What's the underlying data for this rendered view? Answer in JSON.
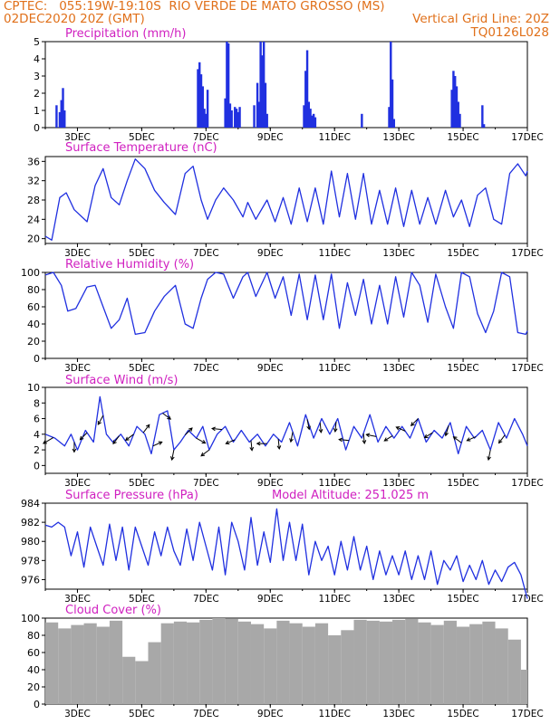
{
  "header": {
    "station_line": "CPTEC:   055:19W-19:10S  RIO VERDE DE MATO GROSSO (MS)",
    "date_line": "02DEC2020 20Z (GMT)",
    "grid_line": "Vertical Grid Line: 20Z",
    "code": "TQ0126L028"
  },
  "colors": {
    "line": "#2030e0",
    "panel_title": "#d020c0",
    "header": "#e0701a",
    "cloud": "#a8a8a8",
    "axis": "#000000"
  },
  "chart_data": [
    {
      "type": "bar",
      "title": "Precipitation (mm/h)",
      "x_tick_labels": [
        "3DEC",
        "5DEC",
        "7DEC",
        "9DEC",
        "11DEC",
        "13DEC",
        "15DEC",
        "17DEC"
      ],
      "xlim_days": [
        2.0,
        17.0
      ],
      "ylim": [
        0,
        5
      ],
      "y_ticks": [
        "0",
        "1",
        "2",
        "3",
        "4",
        "5"
      ],
      "x_days": [
        2.35,
        2.45,
        2.5,
        2.55,
        2.6,
        6.75,
        6.8,
        6.85,
        6.9,
        6.95,
        7.0,
        7.05,
        7.6,
        7.65,
        7.7,
        7.75,
        7.8,
        7.9,
        7.95,
        8.0,
        8.05,
        8.5,
        8.6,
        8.65,
        8.7,
        8.75,
        8.8,
        8.85,
        8.9,
        10.05,
        10.1,
        10.15,
        10.2,
        10.25,
        10.3,
        10.3,
        10.35,
        10.4,
        11.85,
        12.7,
        12.75,
        12.8,
        12.85,
        14.65,
        14.7,
        14.75,
        14.8,
        14.85,
        14.9,
        15.6,
        15.65
      ],
      "values": [
        1.3,
        0.9,
        1.6,
        2.3,
        1.0,
        3.4,
        3.8,
        3.1,
        2.4,
        1.1,
        0.8,
        2.2,
        1.7,
        5.0,
        4.9,
        1.4,
        1.0,
        1.2,
        1.1,
        0.9,
        1.2,
        1.3,
        2.6,
        1.5,
        5.0,
        4.2,
        5.0,
        2.6,
        0.8,
        1.3,
        3.3,
        4.5,
        1.5,
        1.1,
        0.4,
        0.7,
        0.8,
        0.6,
        0.8,
        1.2,
        5.0,
        2.8,
        0.5,
        2.2,
        3.3,
        3.0,
        2.4,
        1.5,
        0.8,
        1.3,
        0.2
      ]
    },
    {
      "type": "line",
      "title": "Surface Temperature (nC)",
      "x_tick_labels": [
        "3DEC",
        "5DEC",
        "7DEC",
        "9DEC",
        "11DEC",
        "13DEC",
        "15DEC",
        "17DEC"
      ],
      "xlim_days": [
        2.0,
        17.0
      ],
      "ylim": [
        19,
        37
      ],
      "y_ticks": [
        "20",
        "24",
        "28",
        "32",
        "36"
      ],
      "x_days": [
        2.0,
        2.2,
        2.45,
        2.65,
        2.9,
        3.3,
        3.55,
        3.8,
        4.05,
        4.3,
        4.55,
        4.8,
        5.1,
        5.4,
        5.7,
        6.05,
        6.35,
        6.6,
        6.85,
        7.05,
        7.3,
        7.55,
        7.85,
        8.15,
        8.3,
        8.55,
        8.9,
        9.15,
        9.4,
        9.65,
        9.9,
        10.15,
        10.4,
        10.65,
        10.9,
        11.15,
        11.4,
        11.65,
        11.9,
        12.15,
        12.4,
        12.65,
        12.9,
        13.15,
        13.4,
        13.65,
        13.9,
        14.15,
        14.45,
        14.7,
        14.95,
        15.2,
        15.45,
        15.7,
        15.95,
        16.2,
        16.45,
        16.7,
        16.95,
        17.0
      ],
      "values": [
        20.5,
        19.7,
        28.5,
        29.5,
        26.0,
        23.5,
        31.0,
        34.5,
        28.5,
        27.0,
        32.0,
        36.5,
        34.5,
        30.0,
        27.5,
        25.0,
        33.5,
        35.0,
        28.0,
        24.0,
        28.0,
        30.5,
        28.0,
        24.5,
        27.5,
        24.0,
        28.0,
        23.5,
        28.5,
        23.0,
        30.5,
        23.5,
        30.5,
        23.0,
        34.0,
        24.5,
        33.5,
        24.0,
        33.5,
        23.0,
        30.0,
        23.0,
        30.5,
        22.5,
        30.0,
        23.0,
        28.5,
        23.0,
        30.0,
        24.5,
        28.0,
        22.5,
        29.0,
        30.5,
        24.0,
        23.0,
        33.5,
        35.5,
        33.0,
        34.0
      ]
    },
    {
      "type": "line",
      "title": "Relative Humidity (%)",
      "x_tick_labels": [
        "3DEC",
        "5DEC",
        "7DEC",
        "9DEC",
        "11DEC",
        "13DEC",
        "15DEC",
        "17DEC"
      ],
      "xlim_days": [
        2.0,
        17.0
      ],
      "ylim": [
        0,
        100
      ],
      "y_ticks": [
        "0",
        "20",
        "40",
        "60",
        "80",
        "100"
      ],
      "x_days": [
        2.0,
        2.25,
        2.5,
        2.7,
        2.95,
        3.3,
        3.55,
        3.8,
        4.05,
        4.3,
        4.55,
        4.8,
        5.1,
        5.4,
        5.7,
        6.05,
        6.35,
        6.6,
        6.85,
        7.05,
        7.3,
        7.55,
        7.85,
        8.15,
        8.3,
        8.55,
        8.9,
        9.15,
        9.4,
        9.65,
        9.9,
        10.15,
        10.4,
        10.65,
        10.9,
        11.15,
        11.4,
        11.65,
        11.9,
        12.15,
        12.4,
        12.65,
        12.9,
        13.15,
        13.4,
        13.65,
        13.9,
        14.15,
        14.45,
        14.7,
        14.95,
        15.2,
        15.45,
        15.7,
        15.95,
        16.2,
        16.45,
        16.7,
        16.95,
        17.0
      ],
      "values": [
        97,
        100,
        85,
        55,
        58,
        83,
        85,
        60,
        35,
        45,
        70,
        28,
        30,
        55,
        72,
        85,
        40,
        35,
        70,
        92,
        100,
        98,
        70,
        95,
        100,
        72,
        100,
        70,
        95,
        50,
        98,
        45,
        97,
        45,
        98,
        35,
        88,
        50,
        92,
        40,
        85,
        40,
        95,
        48,
        100,
        85,
        42,
        98,
        60,
        35,
        100,
        95,
        52,
        30,
        55,
        100,
        95,
        30,
        28,
        32
      ]
    },
    {
      "type": "line",
      "title": "Surface Wind (m/s)",
      "x_tick_labels": [
        "3DEC",
        "5DEC",
        "7DEC",
        "9DEC",
        "11DEC",
        "13DEC",
        "15DEC",
        "17DEC"
      ],
      "xlim_days": [
        2.0,
        17.0
      ],
      "ylim": [
        -1,
        10
      ],
      "y_ticks": [
        "0",
        "2",
        "4",
        "6",
        "8",
        "10"
      ],
      "x_days": [
        2.0,
        2.3,
        2.6,
        2.8,
        3.0,
        3.25,
        3.5,
        3.7,
        3.9,
        4.1,
        4.35,
        4.6,
        4.85,
        5.1,
        5.3,
        5.55,
        5.8,
        6.0,
        6.2,
        6.45,
        6.7,
        6.9,
        7.1,
        7.35,
        7.6,
        7.85,
        8.1,
        8.35,
        8.6,
        8.85,
        9.1,
        9.35,
        9.6,
        9.85,
        10.1,
        10.35,
        10.6,
        10.85,
        11.1,
        11.35,
        11.6,
        11.85,
        12.1,
        12.35,
        12.6,
        12.85,
        13.1,
        13.35,
        13.6,
        13.85,
        14.1,
        14.35,
        14.6,
        14.85,
        15.1,
        15.35,
        15.6,
        15.85,
        16.1,
        16.35,
        16.6,
        16.85,
        17.0
      ],
      "values": [
        4.0,
        3.5,
        2.5,
        4.0,
        2.0,
        4.5,
        3.0,
        8.8,
        4.0,
        3.0,
        4.0,
        2.5,
        5.0,
        4.0,
        1.5,
        6.5,
        7.0,
        2.0,
        3.0,
        4.5,
        3.5,
        5.0,
        2.0,
        4.0,
        5.0,
        3.0,
        4.5,
        3.0,
        4.0,
        2.5,
        4.0,
        3.0,
        5.5,
        2.5,
        6.5,
        3.5,
        6.0,
        4.0,
        6.0,
        2.0,
        5.0,
        3.5,
        6.5,
        3.0,
        5.0,
        3.5,
        5.0,
        3.5,
        6.0,
        3.0,
        4.5,
        3.5,
        5.5,
        1.5,
        5.0,
        3.5,
        4.5,
        2.0,
        5.5,
        3.5,
        6.0,
        4.0,
        2.5
      ],
      "arrows": [
        {
          "day": 2.25,
          "u": -1,
          "v": -0.6
        },
        {
          "day": 2.9,
          "u": 0.0,
          "v": -1
        },
        {
          "day": 3.3,
          "u": -0.7,
          "v": -0.7
        },
        {
          "day": 3.8,
          "u": -0.5,
          "v": -0.9
        },
        {
          "day": 4.3,
          "u": -0.6,
          "v": -0.8
        },
        {
          "day": 4.75,
          "u": -0.8,
          "v": -0.6
        },
        {
          "day": 5.05,
          "u": 0.6,
          "v": 0.8
        },
        {
          "day": 5.35,
          "u": 0.9,
          "v": 0.4
        },
        {
          "day": 5.65,
          "u": 0.8,
          "v": -0.6
        },
        {
          "day": 6.0,
          "u": -0.2,
          "v": -1
        },
        {
          "day": 6.35,
          "u": 0.7,
          "v": 0.7
        },
        {
          "day": 6.7,
          "u": 0.9,
          "v": -0.5
        },
        {
          "day": 7.1,
          "u": -0.8,
          "v": -0.6
        },
        {
          "day": 7.5,
          "u": -1,
          "v": 0.1
        },
        {
          "day": 7.9,
          "u": -0.9,
          "v": -0.4
        },
        {
          "day": 8.4,
          "u": 0.1,
          "v": -1
        },
        {
          "day": 8.9,
          "u": -1,
          "v": 0
        },
        {
          "day": 9.25,
          "u": 0.1,
          "v": -1
        },
        {
          "day": 9.7,
          "u": -0.2,
          "v": -1
        },
        {
          "day": 10.15,
          "u": 0.2,
          "v": -1
        },
        {
          "day": 10.55,
          "u": 0.1,
          "v": -1
        },
        {
          "day": 11.05,
          "u": -0.1,
          "v": -1
        },
        {
          "day": 11.45,
          "u": -1,
          "v": 0.1
        },
        {
          "day": 11.9,
          "u": 0.1,
          "v": -1
        },
        {
          "day": 12.3,
          "u": -1,
          "v": 0.2
        },
        {
          "day": 12.8,
          "u": -0.8,
          "v": -0.5
        },
        {
          "day": 13.2,
          "u": -0.9,
          "v": 0.4
        },
        {
          "day": 13.6,
          "u": -0.7,
          "v": -0.7
        },
        {
          "day": 14.05,
          "u": -0.8,
          "v": -0.5
        },
        {
          "day": 14.55,
          "u": -0.3,
          "v": -1
        },
        {
          "day": 14.95,
          "u": -0.8,
          "v": 0.6
        },
        {
          "day": 15.4,
          "u": -0.9,
          "v": -0.4
        },
        {
          "day": 15.85,
          "u": -0.2,
          "v": -1
        },
        {
          "day": 16.3,
          "u": -0.6,
          "v": -0.8
        }
      ]
    },
    {
      "type": "line",
      "title": "Surface Pressure (hPa)",
      "annotation": "Model Altitude: 251.025 m",
      "x_tick_labels": [
        "3DEC",
        "5DEC",
        "7DEC",
        "9DEC",
        "11DEC",
        "13DEC",
        "15DEC",
        "17DEC"
      ],
      "xlim_days": [
        2.0,
        17.0
      ],
      "ylim": [
        975,
        984
      ],
      "y_ticks": [
        "976",
        "978",
        "980",
        "982",
        "984"
      ],
      "x_days": [
        2.0,
        2.2,
        2.4,
        2.6,
        2.8,
        3.0,
        3.2,
        3.4,
        3.6,
        3.8,
        4.0,
        4.2,
        4.4,
        4.6,
        4.8,
        5.0,
        5.2,
        5.4,
        5.6,
        5.8,
        6.0,
        6.2,
        6.4,
        6.6,
        6.8,
        7.0,
        7.2,
        7.4,
        7.6,
        7.8,
        8.0,
        8.2,
        8.4,
        8.6,
        8.8,
        9.0,
        9.2,
        9.4,
        9.6,
        9.8,
        10.0,
        10.2,
        10.4,
        10.6,
        10.8,
        11.0,
        11.2,
        11.4,
        11.6,
        11.8,
        12.0,
        12.2,
        12.4,
        12.6,
        12.8,
        13.0,
        13.2,
        13.4,
        13.6,
        13.8,
        14.0,
        14.2,
        14.4,
        14.6,
        14.8,
        15.0,
        15.2,
        15.4,
        15.6,
        15.8,
        16.0,
        16.2,
        16.4,
        16.6,
        16.8,
        17.0
      ],
      "values": [
        981.7,
        981.5,
        982.0,
        981.5,
        978.5,
        981.0,
        977.3,
        981.5,
        979.5,
        977.5,
        981.8,
        978.0,
        981.5,
        977.0,
        981.5,
        979.5,
        977.5,
        981.0,
        978.5,
        981.5,
        979.0,
        977.5,
        981.3,
        978.0,
        982.0,
        979.5,
        977.0,
        981.5,
        976.5,
        982.0,
        980.0,
        977.0,
        982.5,
        977.5,
        981.0,
        977.8,
        983.4,
        978.0,
        982.0,
        978.0,
        981.8,
        976.5,
        980.0,
        978.0,
        979.5,
        976.5,
        980.0,
        977.0,
        980.5,
        977.0,
        979.5,
        976.0,
        979.0,
        976.5,
        978.5,
        976.5,
        979.0,
        976.0,
        978.5,
        976.0,
        979.0,
        975.5,
        978.0,
        977.0,
        978.5,
        975.8,
        977.5,
        976.0,
        978.0,
        975.5,
        977.0,
        975.8,
        977.3,
        977.8,
        976.5,
        974.0
      ]
    },
    {
      "type": "bar",
      "title": "Cloud Cover (%)",
      "x_tick_labels": [
        "3DEC",
        "5DEC",
        "7DEC",
        "9DEC",
        "11DEC",
        "13DEC",
        "15DEC",
        "17DEC"
      ],
      "xlim_days": [
        2.0,
        17.0
      ],
      "ylim": [
        0,
        100
      ],
      "y_ticks": [
        "0",
        "20",
        "40",
        "60",
        "80",
        "100"
      ],
      "x_days": [
        2.0,
        2.4,
        2.8,
        3.2,
        3.6,
        4.0,
        4.4,
        4.8,
        5.2,
        5.6,
        6.0,
        6.4,
        6.8,
        7.2,
        7.6,
        8.0,
        8.4,
        8.8,
        9.2,
        9.6,
        10.0,
        10.4,
        10.8,
        11.2,
        11.6,
        12.0,
        12.4,
        12.8,
        13.2,
        13.6,
        14.0,
        14.4,
        14.8,
        15.2,
        15.6,
        16.0,
        16.4,
        16.8
      ],
      "values": [
        95,
        88,
        92,
        94,
        90,
        97,
        55,
        50,
        72,
        94,
        96,
        95,
        98,
        100,
        99,
        96,
        93,
        88,
        97,
        94,
        90,
        94,
        80,
        86,
        98,
        97,
        96,
        98,
        99,
        95,
        92,
        97,
        90,
        93,
        96,
        88,
        75,
        40
      ]
    }
  ]
}
